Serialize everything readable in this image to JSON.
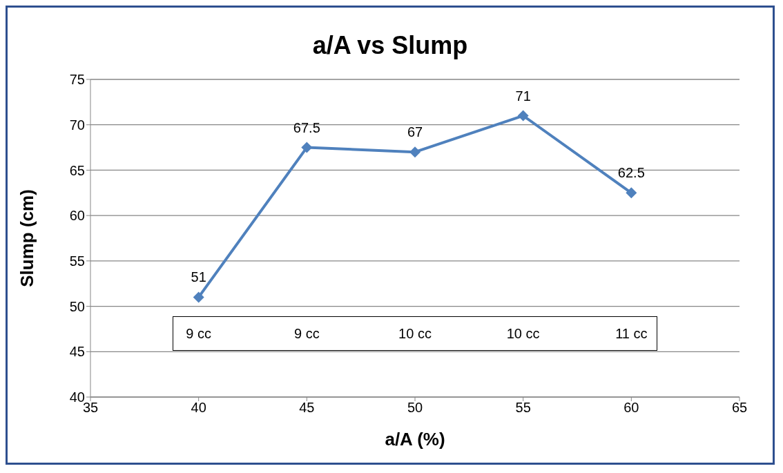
{
  "chart_data": {
    "type": "line",
    "title": "a/A vs Slump",
    "xlabel": "a/A (%)",
    "ylabel": "Slump (cm)",
    "x": [
      40,
      45,
      50,
      55,
      60
    ],
    "series": [
      {
        "color": "#4f81bd",
        "values": [
          51,
          67.5,
          67,
          71,
          62.5
        ]
      }
    ],
    "xlim": [
      35,
      65
    ],
    "xticks": [
      35,
      40,
      45,
      50,
      55,
      60,
      65
    ],
    "ylim": [
      40,
      75
    ],
    "yticks": [
      40,
      45,
      50,
      55,
      60,
      65,
      70,
      75
    ],
    "grid": "y",
    "legend": false,
    "marker": "diamond",
    "line_style": "solid",
    "data_labels": true,
    "annotations": [
      "9 cc",
      "9 cc",
      "10 cc",
      "10 cc",
      "11 cc"
    ]
  }
}
